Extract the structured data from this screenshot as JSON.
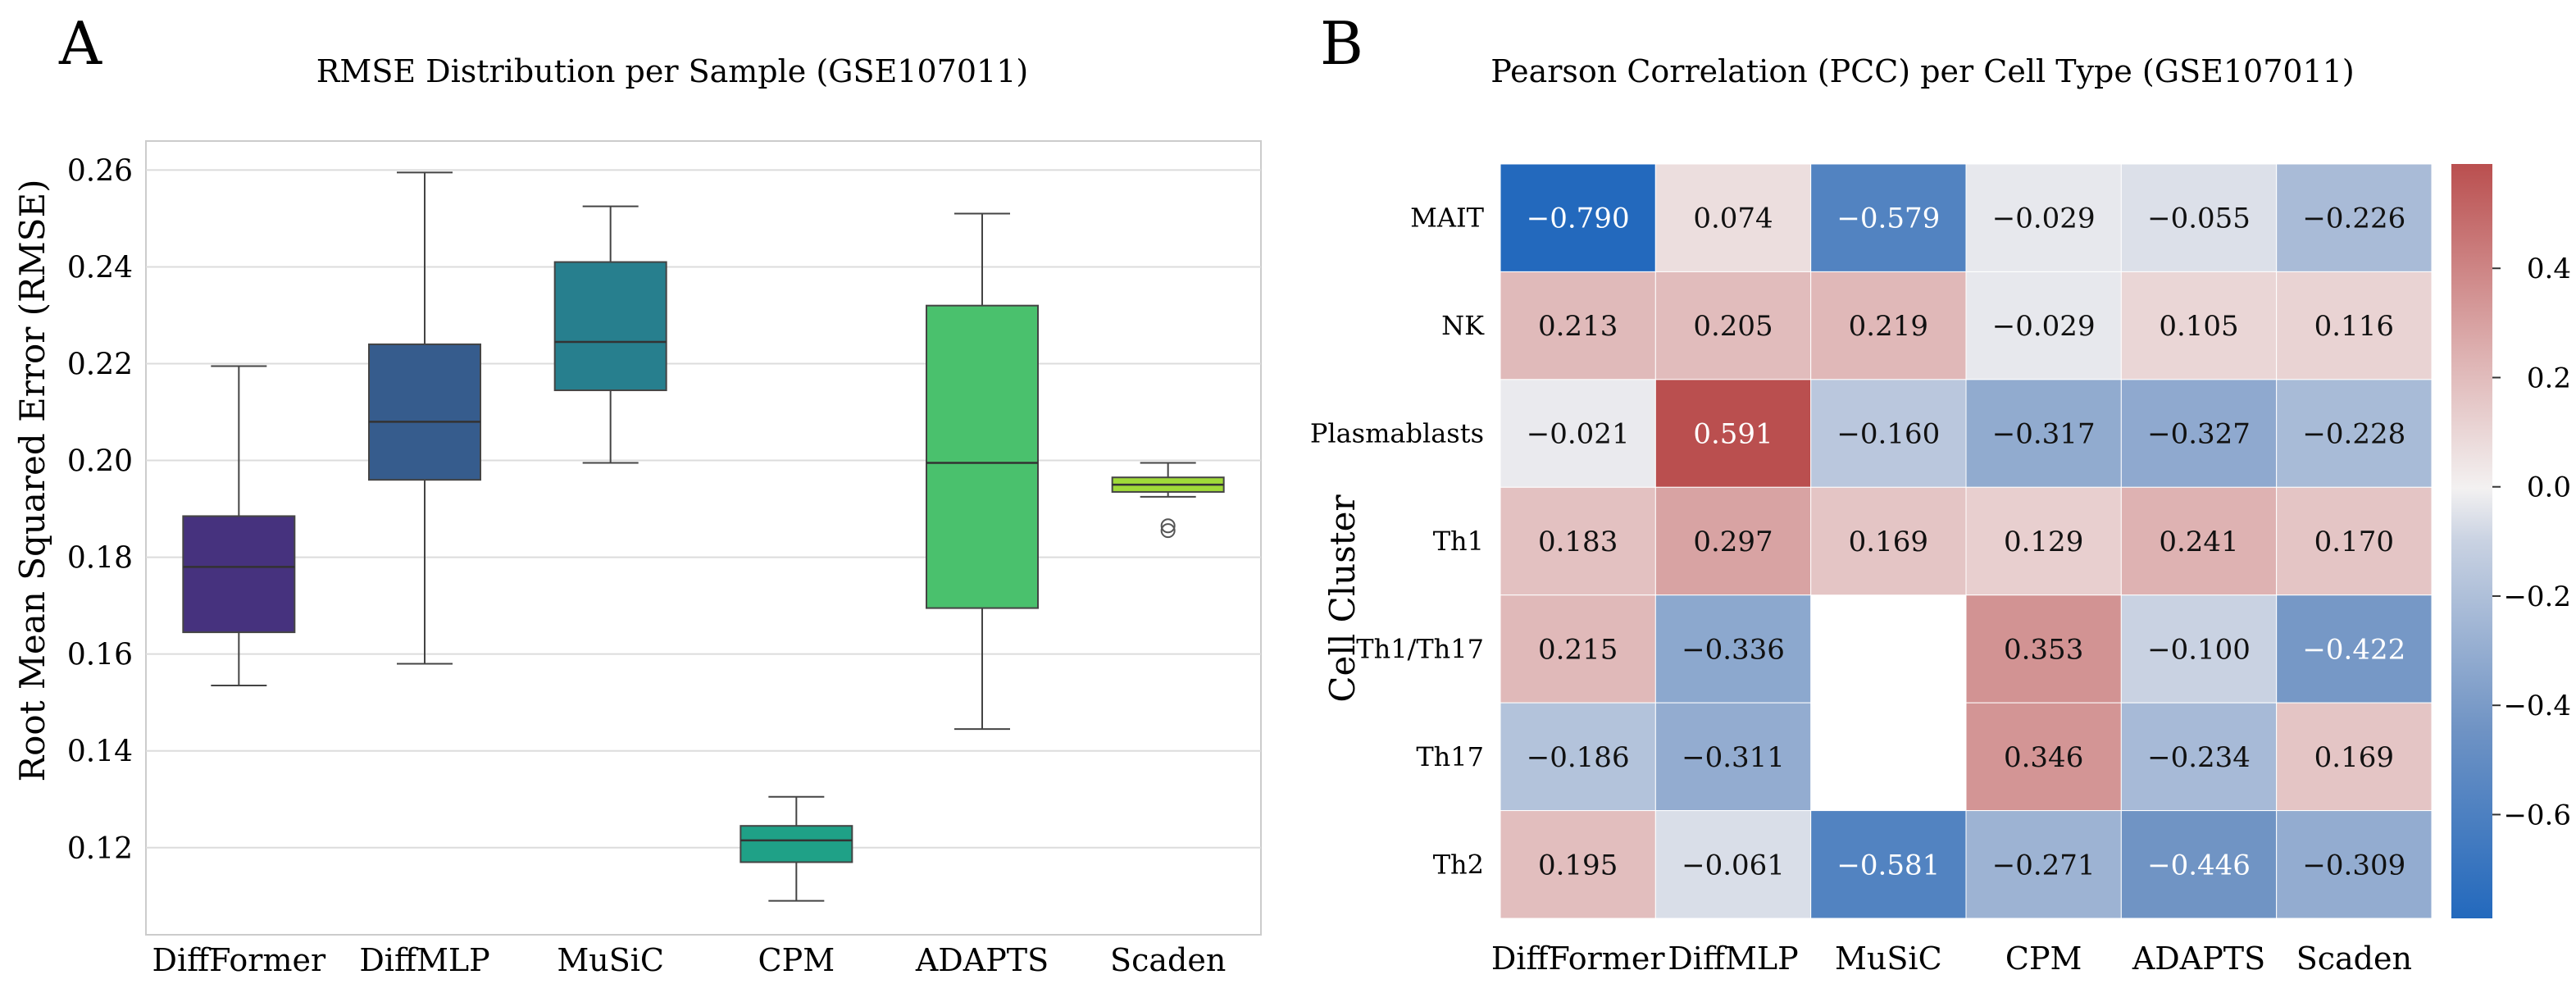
{
  "chart_data": [
    {
      "panel_label": "A",
      "type": "box",
      "title": "RMSE Distribution per Sample (GSE107011)",
      "xlabel": "",
      "ylabel": "Root Mean Squared Error (RMSE)",
      "ylim": [
        0.102,
        0.266
      ],
      "yticks": [
        0.12,
        0.14,
        0.16,
        0.18,
        0.2,
        0.22,
        0.24,
        0.26
      ],
      "ytick_labels": [
        "0.12",
        "0.14",
        "0.16",
        "0.18",
        "0.20",
        "0.22",
        "0.24",
        "0.26"
      ],
      "grid": true,
      "categories": [
        "DiffFormer",
        "DiffMLP",
        "MuSiC",
        "CPM",
        "ADAPTS",
        "Scaden"
      ],
      "boxes": [
        {
          "name": "DiffFormer",
          "whisker_low": 0.1535,
          "q1": 0.1645,
          "median": 0.178,
          "q3": 0.1885,
          "whisker_high": 0.2195,
          "outliers": [],
          "color": "#46327e"
        },
        {
          "name": "DiffMLP",
          "whisker_low": 0.158,
          "q1": 0.196,
          "median": 0.208,
          "q3": 0.224,
          "whisker_high": 0.2595,
          "outliers": [],
          "color": "#365c8d"
        },
        {
          "name": "MuSiC",
          "whisker_low": 0.1995,
          "q1": 0.2145,
          "median": 0.2245,
          "q3": 0.241,
          "whisker_high": 0.2525,
          "outliers": [],
          "color": "#277f8e"
        },
        {
          "name": "CPM",
          "whisker_low": 0.109,
          "q1": 0.117,
          "median": 0.1215,
          "q3": 0.1245,
          "whisker_high": 0.1305,
          "outliers": [],
          "color": "#1fa187"
        },
        {
          "name": "ADAPTS",
          "whisker_low": 0.1445,
          "q1": 0.1695,
          "median": 0.1995,
          "q3": 0.232,
          "whisker_high": 0.251,
          "outliers": [],
          "color": "#4ac16d"
        },
        {
          "name": "Scaden",
          "whisker_low": 0.1925,
          "q1": 0.1935,
          "median": 0.195,
          "q3": 0.1965,
          "whisker_high": 0.1995,
          "outliers": [
            0.1855,
            0.1865
          ],
          "color": "#a0da39"
        }
      ]
    },
    {
      "panel_label": "B",
      "type": "heatmap",
      "title": "Pearson Correlation (PCC) per Cell Type (GSE107011)",
      "xlabel": "",
      "ylabel": "Cell Cluster",
      "columns": [
        "DiffFormer",
        "DiffMLP",
        "MuSiC",
        "CPM",
        "ADAPTS",
        "Scaden"
      ],
      "rows": [
        "MAIT",
        "NK",
        "Plasmablasts",
        "Th1",
        "Th1/Th17",
        "Th17",
        "Th2"
      ],
      "values": [
        [
          -0.79,
          0.074,
          -0.579,
          -0.029,
          -0.055,
          -0.226
        ],
        [
          0.213,
          0.205,
          0.219,
          -0.029,
          0.105,
          0.116
        ],
        [
          -0.021,
          0.591,
          -0.16,
          -0.317,
          -0.327,
          -0.228
        ],
        [
          0.183,
          0.297,
          0.169,
          0.129,
          0.241,
          0.17
        ],
        [
          0.215,
          -0.336,
          null,
          0.353,
          -0.1,
          -0.422
        ],
        [
          -0.186,
          -0.311,
          null,
          0.346,
          -0.234,
          0.169
        ],
        [
          0.195,
          -0.061,
          -0.581,
          -0.271,
          -0.446,
          -0.309
        ]
      ],
      "cell_labels": [
        [
          "−0.790",
          "0.074",
          "−0.579",
          "−0.029",
          "−0.055",
          "−0.226"
        ],
        [
          "0.213",
          "0.205",
          "0.219",
          "−0.029",
          "0.105",
          "0.116"
        ],
        [
          "−0.021",
          "0.591",
          "−0.160",
          "−0.317",
          "−0.327",
          "−0.228"
        ],
        [
          "0.183",
          "0.297",
          "0.169",
          "0.129",
          "0.241",
          "0.170"
        ],
        [
          "0.215",
          "−0.336",
          "",
          "0.353",
          "−0.100",
          "−0.422"
        ],
        [
          "−0.186",
          "−0.311",
          "",
          "0.346",
          "−0.234",
          "0.169"
        ],
        [
          "0.195",
          "−0.061",
          "−0.581",
          "−0.271",
          "−0.446",
          "−0.309"
        ]
      ],
      "colormap": "vlag",
      "colorbar": {
        "vmin": -0.79,
        "vmax": 0.591,
        "ticks": [
          0.4,
          0.2,
          0.0,
          -0.2,
          -0.4,
          -0.6
        ],
        "tick_labels": [
          "0.4",
          "0.2",
          "0.0",
          "−0.2",
          "−0.4",
          "−0.6"
        ]
      }
    }
  ]
}
